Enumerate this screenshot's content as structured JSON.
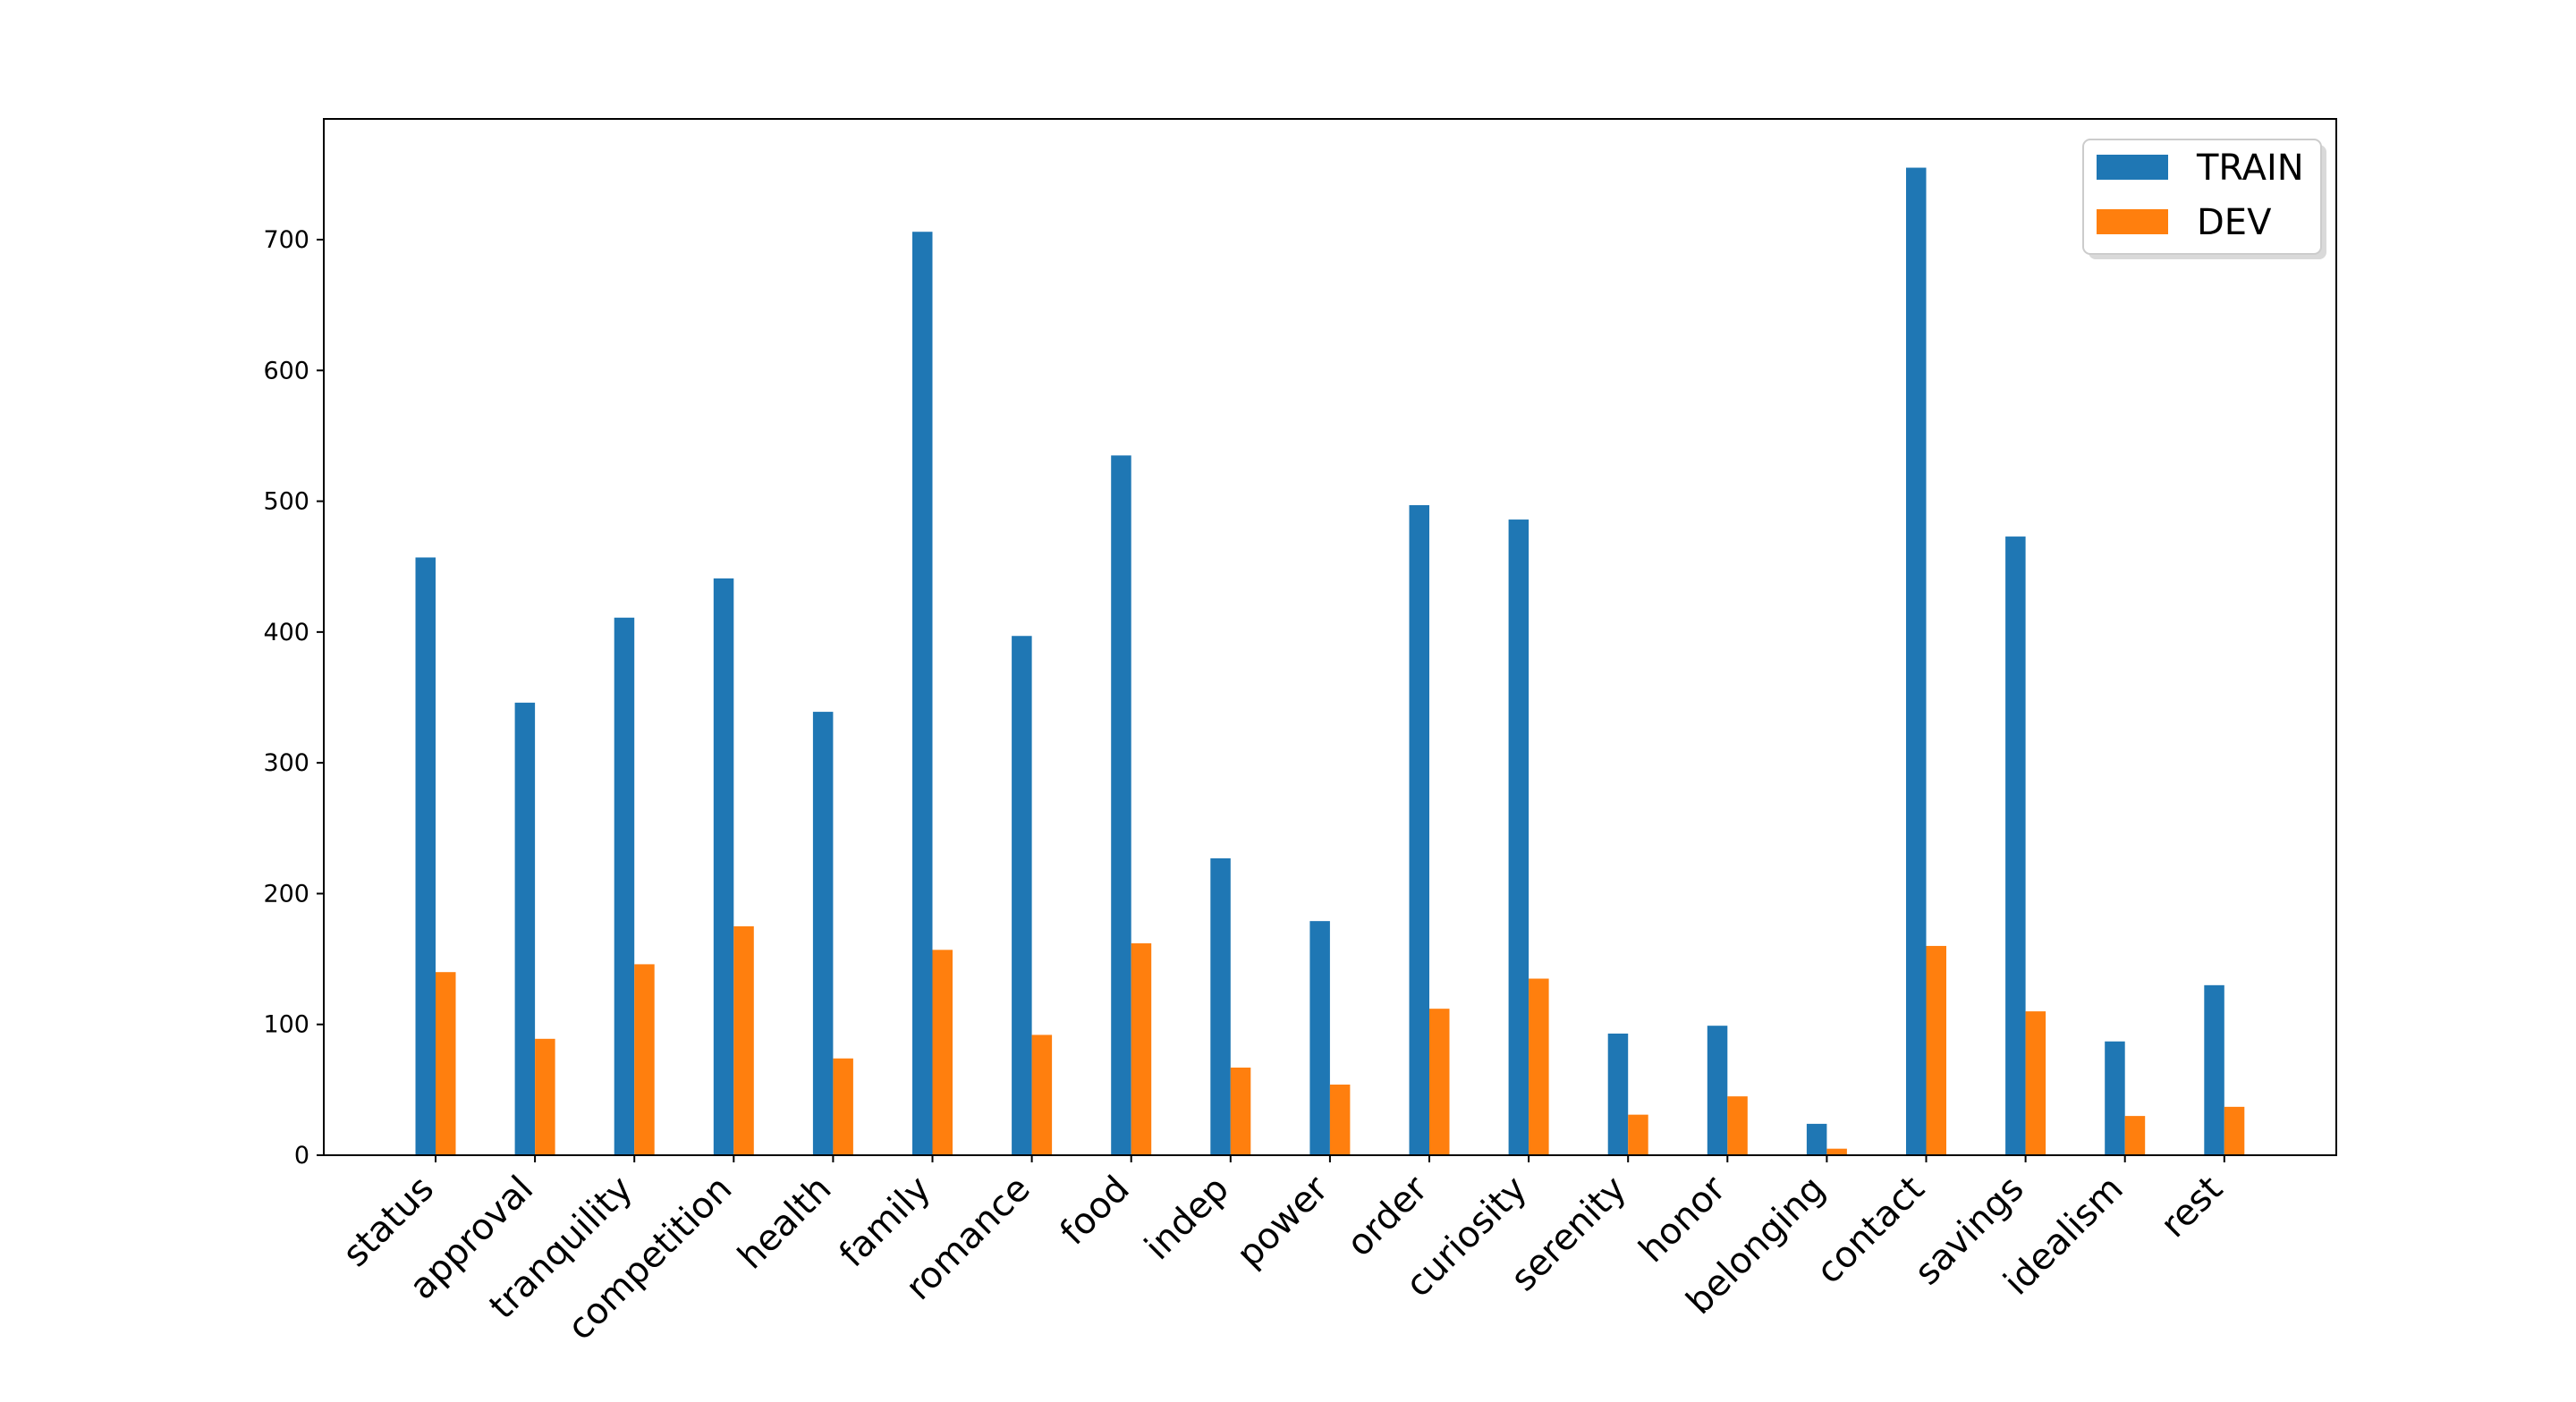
{
  "chart_data": {
    "type": "bar",
    "categories": [
      "status",
      "approval",
      "tranquility",
      "competition",
      "health",
      "family",
      "romance",
      "food",
      "indep",
      "power",
      "order",
      "curiosity",
      "serenity",
      "honor",
      "belonging",
      "contact",
      "savings",
      "idealism",
      "rest"
    ],
    "series": [
      {
        "name": "TRAIN",
        "color": "#1f77b4",
        "values": [
          457,
          346,
          411,
          441,
          339,
          706,
          397,
          535,
          227,
          179,
          497,
          486,
          93,
          99,
          24,
          755,
          473,
          87,
          130
        ]
      },
      {
        "name": "DEV",
        "color": "#ff7f0e",
        "values": [
          140,
          89,
          146,
          175,
          74,
          157,
          92,
          162,
          67,
          54,
          112,
          135,
          31,
          45,
          5,
          160,
          110,
          30,
          37
        ]
      }
    ],
    "yticks": [
      "0",
      "100",
      "200",
      "300",
      "400",
      "500",
      "600",
      "700"
    ],
    "ylim": [
      0,
      790
    ],
    "xlabel": "",
    "ylabel": "",
    "title": "",
    "grid": false,
    "legend_position": "top-right"
  }
}
